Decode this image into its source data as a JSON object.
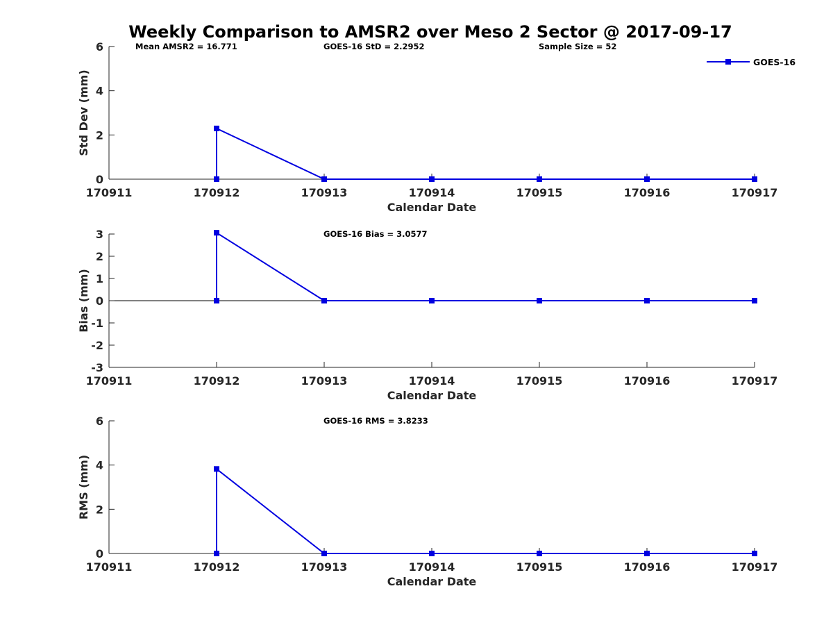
{
  "chart_data": [
    {
      "type": "line",
      "title": "Weekly Comparison to AMSR2 over Meso 2 Sector @ 2017-09-17",
      "xlabel": "Calendar Date",
      "ylabel": "Std Dev (mm)",
      "categories": [
        "170911",
        "170912",
        "170913",
        "170914",
        "170915",
        "170916",
        "170917"
      ],
      "xlim": [
        0,
        6
      ],
      "ylim": [
        0,
        6
      ],
      "yticks": [
        "0",
        "2",
        "4",
        "6"
      ],
      "annotations": [
        "Mean AMSR2 = 16.771",
        "GOES-16 StD = 2.2952",
        "Sample Size = 52"
      ],
      "legend": {
        "labels": [
          "GOES-16"
        ],
        "position": "top-right"
      },
      "series": [
        {
          "name": "GOES-16",
          "x": [
            1,
            1,
            2,
            3,
            4,
            5,
            6
          ],
          "values": [
            0,
            2.2952,
            0,
            0,
            0,
            0,
            0
          ]
        }
      ]
    },
    {
      "type": "line",
      "xlabel": "Calendar Date",
      "ylabel": "Bias (mm)",
      "categories": [
        "170911",
        "170912",
        "170913",
        "170914",
        "170915",
        "170916",
        "170917"
      ],
      "xlim": [
        0,
        6
      ],
      "ylim": [
        -3,
        3
      ],
      "yticks": [
        "-3",
        "-2",
        "-1",
        "0",
        "1",
        "2",
        "3"
      ],
      "annotations": [
        "GOES-16 Bias  = 3.0577"
      ],
      "series": [
        {
          "name": "GOES-16",
          "x": [
            1,
            1,
            2,
            3,
            4,
            5,
            6
          ],
          "values": [
            0,
            3.0577,
            0,
            0,
            0,
            0,
            0
          ]
        }
      ]
    },
    {
      "type": "line",
      "xlabel": "Calendar Date",
      "ylabel": "RMS (mm)",
      "categories": [
        "170911",
        "170912",
        "170913",
        "170914",
        "170915",
        "170916",
        "170917"
      ],
      "xlim": [
        0,
        6
      ],
      "ylim": [
        0,
        6
      ],
      "yticks": [
        "0",
        "2",
        "4",
        "6"
      ],
      "annotations": [
        "GOES-16 RMS = 3.8233"
      ],
      "series": [
        {
          "name": "GOES-16",
          "x": [
            1,
            1,
            2,
            3,
            4,
            5,
            6
          ],
          "values": [
            0,
            3.8233,
            0,
            0,
            0,
            0,
            0
          ]
        }
      ]
    }
  ]
}
